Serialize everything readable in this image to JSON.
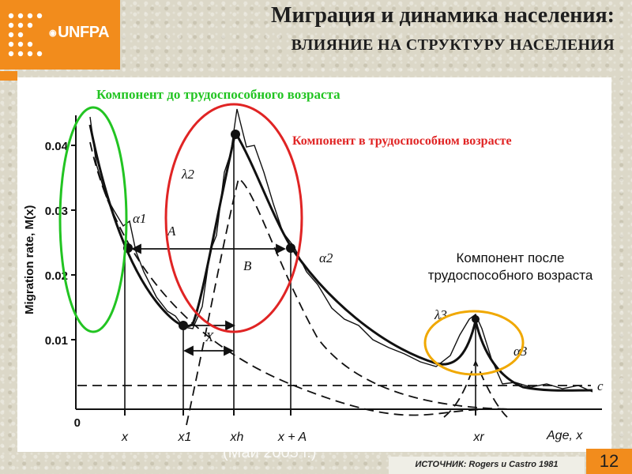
{
  "header": {
    "logo_text": "UNFPA",
    "title": "Миграция и динамика населения:",
    "subtitle": "ВЛИЯНИЕ НА СТРУКТУРУ НАСЕЛЕНИЯ"
  },
  "labels": {
    "pre_working": "Компонент до трудоспособного возраста",
    "working": "Компонент в трудоспособном возрасте",
    "post_working_line1": "Компонент после",
    "post_working_line2": "трудоспособного возраста"
  },
  "figure": {
    "y_axis_label": "Migration rate, M(x)",
    "y_ticks": [
      "0",
      "0.01",
      "0.02",
      "0.03",
      "0.04"
    ],
    "x_axis_label": "Age, x",
    "x_ticks": [
      "x",
      "x1",
      "xh",
      "x + A",
      "xr"
    ],
    "annotations": [
      "α1",
      "A",
      "λ2",
      "B",
      "α2",
      "X",
      "λ3",
      "α3",
      "c"
    ]
  },
  "colors": {
    "orange": "#f28c1c",
    "green_ellipse": "#22c422",
    "red_ellipse": "#e02424",
    "yellow_ellipse": "#f0a800"
  },
  "footer": {
    "ghost_text": "(Май 2005 г.)",
    "source": "ИСТОЧНИК: Rogers и Castro 1981",
    "page_number": "12"
  }
}
